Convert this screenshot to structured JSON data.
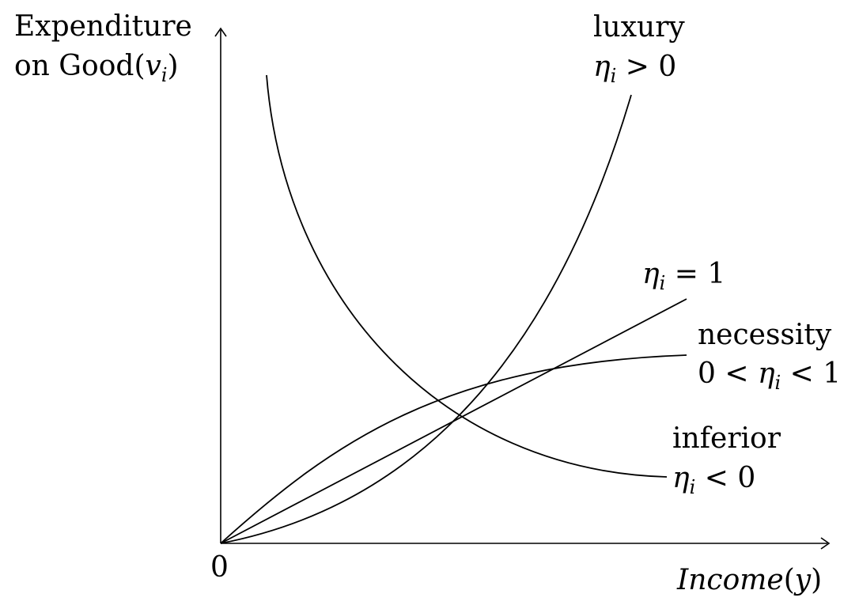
{
  "diagram": {
    "y_axis_label_line1": "Expenditure",
    "y_axis_label_line2_text": "on Good(",
    "y_axis_label_line2_var": "v",
    "y_axis_label_line2_sub": "i",
    "y_axis_label_line2_close": ")",
    "origin_label": "0",
    "x_axis_label_word": "Income",
    "x_axis_label_open": "(",
    "x_axis_label_var": "y",
    "x_axis_label_close": ")"
  },
  "curves": {
    "luxury": {
      "name": "luxury",
      "eta": "η",
      "sub": "i",
      "rel": " > 0"
    },
    "unit": {
      "eta": "η",
      "sub": "i",
      "rel": " = 1"
    },
    "necessity": {
      "name": "necessity",
      "prefix": "0 < ",
      "eta": "η",
      "sub": "i",
      "rel": " < 1"
    },
    "inferior": {
      "name": "inferior",
      "eta": "η",
      "sub": "i",
      "rel": " < 0"
    }
  },
  "colors": {
    "ink": "#000000",
    "background": "#ffffff"
  }
}
